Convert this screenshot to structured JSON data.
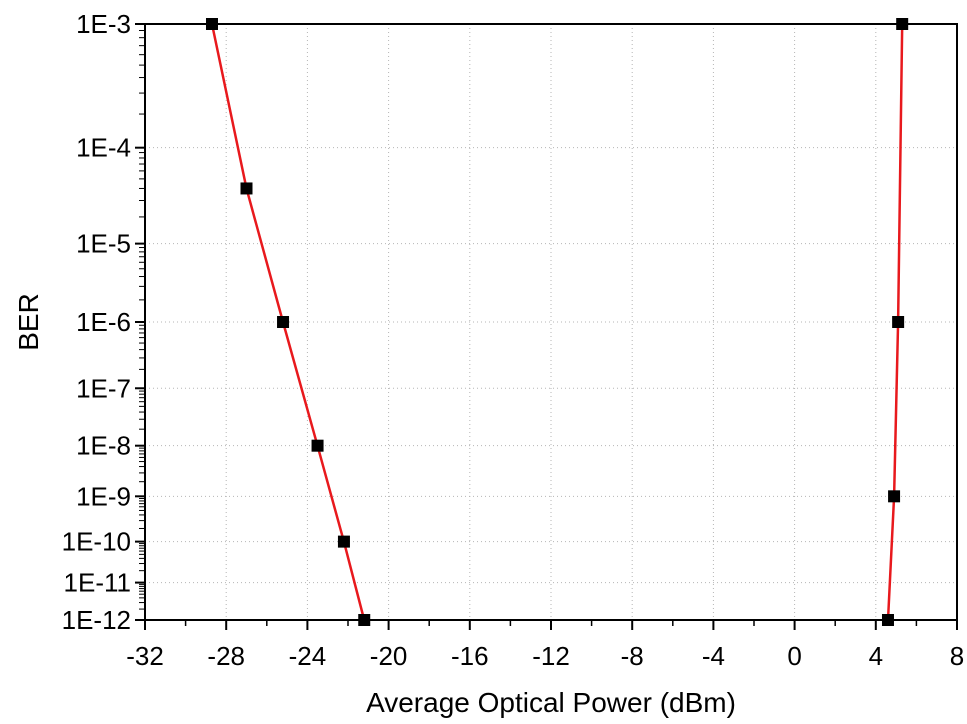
{
  "chart_data": {
    "type": "line",
    "xlabel": "Average Optical Power (dBm)",
    "ylabel": "BER",
    "x_ticks": [
      "-32",
      "-28",
      "-24",
      "-20",
      "-16",
      "-12",
      "-8",
      "-4",
      "0",
      "4",
      "8"
    ],
    "x_tick_values": [
      -32,
      -28,
      -24,
      -20,
      -16,
      -12,
      -8,
      -4,
      0,
      4,
      8
    ],
    "y_ticks": [
      "1E-3",
      "1E-4",
      "1E-5",
      "1E-6",
      "1E-7",
      "1E-8",
      "1E-9",
      "1E-10",
      "1E-11",
      "1E-12"
    ],
    "y_tick_values": [
      0.001,
      0.0001,
      1e-05,
      1e-06,
      1e-07,
      1e-08,
      1e-09,
      1e-10,
      1e-11,
      1e-12
    ],
    "xlim": [
      -32,
      8
    ],
    "ylim": [
      1e-12,
      0.001
    ],
    "y_scale": "log(-log10(BER))",
    "grid": true,
    "marker_color": "#000000",
    "line_color": "#e8191d",
    "series": [
      {
        "x": [
          -28.7,
          -27.0,
          -25.2,
          -23.5,
          -22.2,
          -21.2
        ],
        "y": [
          0.001,
          4e-05,
          1e-06,
          1e-08,
          1e-10,
          1e-12
        ]
      },
      {
        "x": [
          5.3,
          5.1,
          4.9,
          4.6
        ],
        "y": [
          0.001,
          1e-06,
          1e-09,
          1e-12
        ]
      }
    ]
  }
}
